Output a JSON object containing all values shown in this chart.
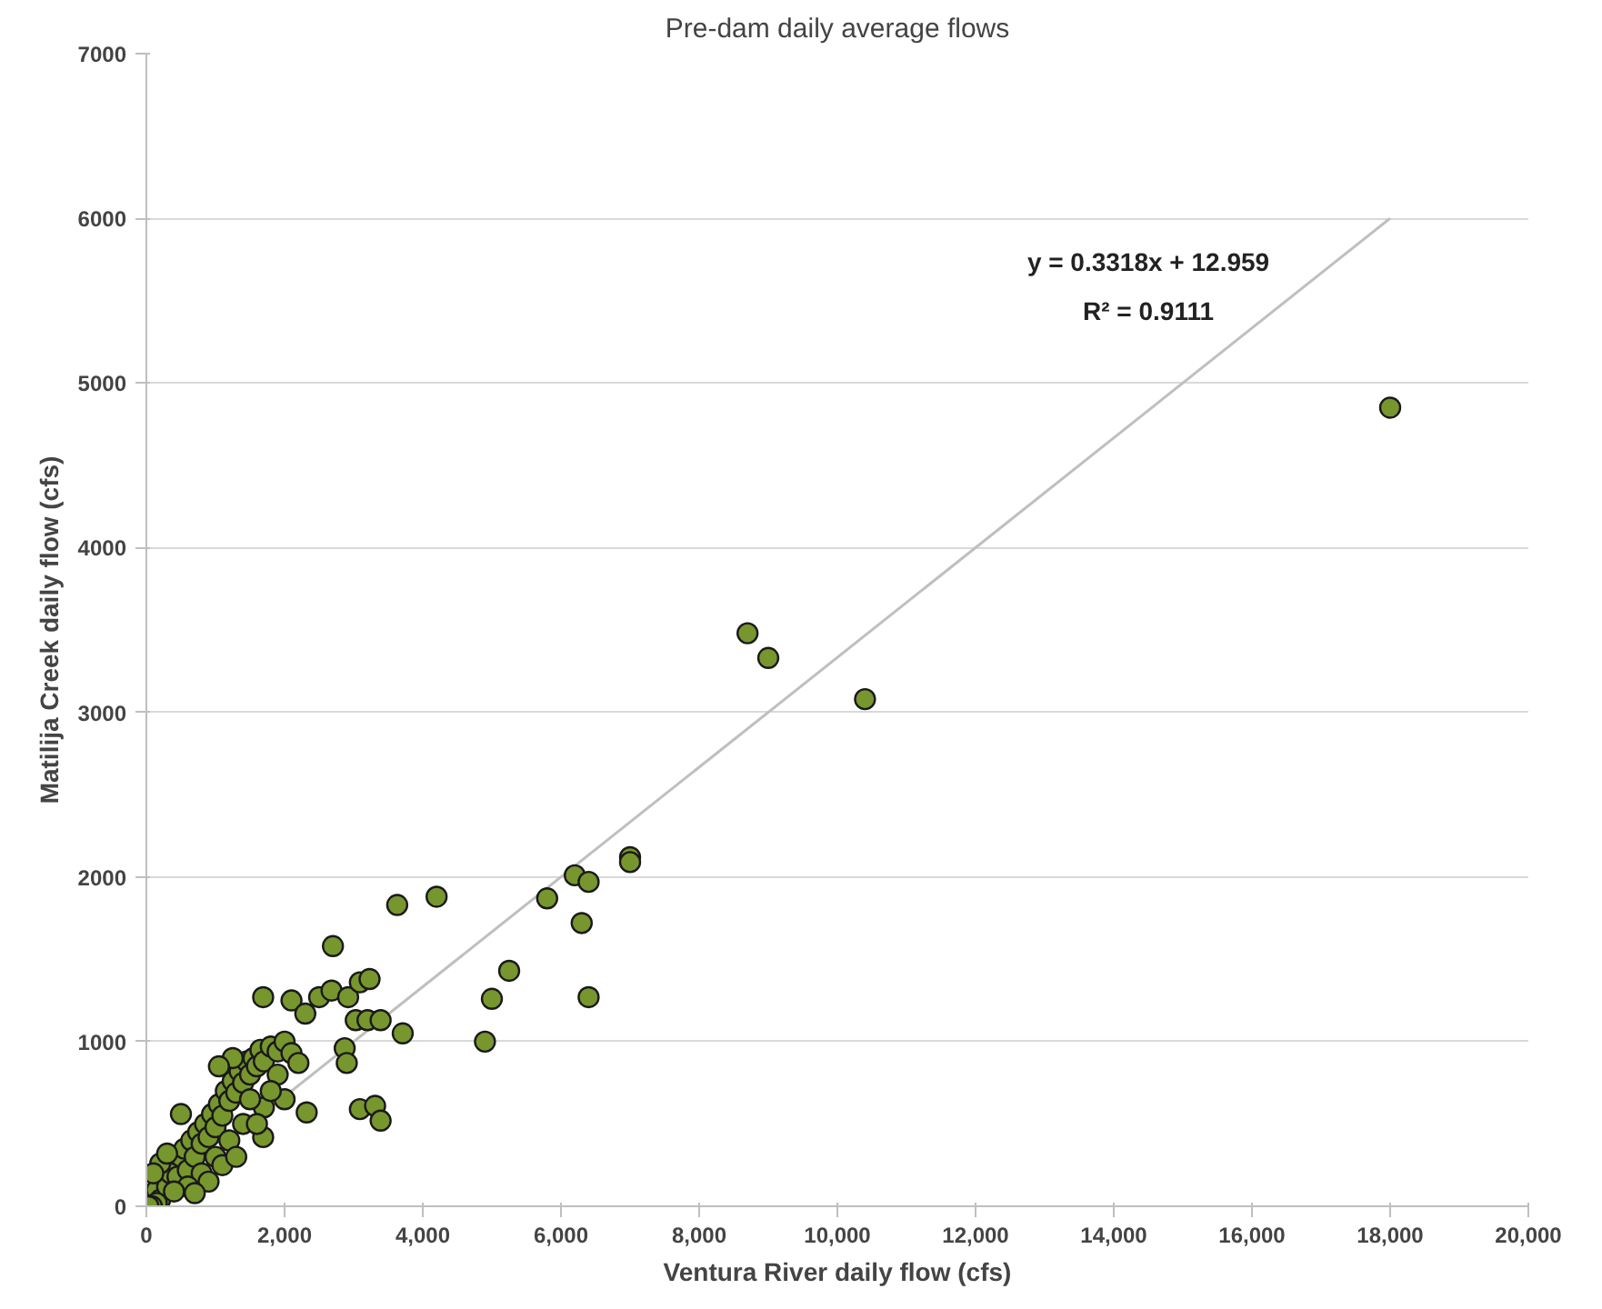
{
  "chart_data": {
    "type": "scatter",
    "title": "Pre-dam daily average flows",
    "xlabel": "Ventura River daily flow (cfs)",
    "ylabel": "Matilija Creek daily flow (cfs)",
    "xlim": [
      0,
      20000
    ],
    "ylim": [
      0,
      7000
    ],
    "xticks": [
      {
        "value": 0,
        "label": "0"
      },
      {
        "value": 2000,
        "label": "2,000"
      },
      {
        "value": 4000,
        "label": "4,000"
      },
      {
        "value": 6000,
        "label": "6,000"
      },
      {
        "value": 8000,
        "label": "8,000"
      },
      {
        "value": 10000,
        "label": "10,000"
      },
      {
        "value": 12000,
        "label": "12,000"
      },
      {
        "value": 14000,
        "label": "14,000"
      },
      {
        "value": 16000,
        "label": "16,000"
      },
      {
        "value": 18000,
        "label": "18,000"
      },
      {
        "value": 20000,
        "label": "20,000"
      }
    ],
    "yticks": [
      0,
      1000,
      2000,
      3000,
      4000,
      5000,
      6000,
      7000
    ],
    "grid": "y",
    "marker": "circle",
    "annotations": [
      "y = 0.3318x + 12.959",
      "R² = 0.9111"
    ],
    "series": [
      {
        "type": "line",
        "marker": "none",
        "color": "#bfbfbf",
        "x": [
          0,
          18000
        ],
        "values": [
          0,
          6000
        ]
      },
      {
        "color": "#77962e",
        "x": [
          18000,
          8700,
          9000,
          10400,
          7000,
          7000,
          6200,
          6400,
          5800,
          6300,
          6400,
          5000,
          5250,
          4900,
          4200,
          3630,
          3710,
          2700,
          1690,
          2100,
          2300,
          2500,
          2680,
          2920,
          3090,
          3230,
          3030,
          3200,
          3390,
          2870,
          2900,
          3090,
          3310,
          3390,
          2320,
          1690,
          500,
          150,
          200,
          300,
          350,
          450,
          500,
          550,
          600,
          650,
          700,
          750,
          800,
          850,
          900,
          950,
          1000,
          1050,
          1100,
          1150,
          1200,
          1250,
          1300,
          1350,
          1400,
          1450,
          1500,
          1550,
          1600,
          1650,
          1700,
          1800,
          1900,
          2000,
          2100,
          2200,
          1200,
          1000,
          800,
          600,
          1400,
          1100,
          900,
          1300,
          700,
          400,
          200,
          300,
          100,
          1700,
          1500,
          1900,
          2000,
          1800,
          1600,
          1250,
          1050,
          150,
          80,
          30
        ],
        "values": [
          4850,
          3480,
          3330,
          3080,
          2120,
          2090,
          2010,
          1970,
          1870,
          1720,
          1270,
          1260,
          1430,
          1000,
          1880,
          1830,
          1050,
          1580,
          1270,
          1250,
          1170,
          1270,
          1310,
          1270,
          1360,
          1380,
          1130,
          1130,
          1130,
          960,
          870,
          590,
          610,
          520,
          570,
          420,
          560,
          100,
          40,
          120,
          200,
          180,
          300,
          350,
          220,
          400,
          300,
          450,
          380,
          500,
          420,
          560,
          480,
          620,
          550,
          700,
          640,
          760,
          690,
          820,
          750,
          880,
          800,
          900,
          850,
          950,
          880,
          970,
          940,
          1000,
          930,
          870,
          400,
          300,
          200,
          120,
          500,
          250,
          150,
          300,
          80,
          90,
          260,
          320,
          200,
          600,
          650,
          800,
          650,
          700,
          500,
          900,
          850,
          20,
          0,
          0
        ]
      }
    ]
  }
}
